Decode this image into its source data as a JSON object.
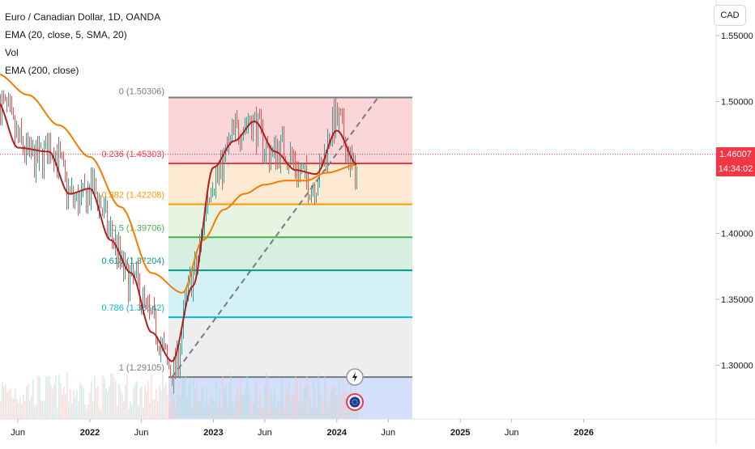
{
  "legend": {
    "symbol": "Euro / Canadian Dollar, 1D, OANDA",
    "ind1": "EMA (20, close, 5, SMA, 20)",
    "ind2": "Vol",
    "ind3": "EMA (200, close)"
  },
  "currency_button": "CAD",
  "last_price": {
    "value": "1.46007",
    "countdown": "14:34:02"
  },
  "colors": {
    "up": "#26a69a",
    "down": "#ef5350",
    "ema20": "#b71c1c",
    "ema200": "#f57c00",
    "price_line": "#f23645"
  },
  "chart_data": {
    "type": "line",
    "symbol": "EURCAD",
    "y_ticks": [
      "1.55000",
      "1.50000",
      "1.45000",
      "1.40000",
      "1.35000",
      "1.30000"
    ],
    "ylim": [
      1.262,
      1.562
    ],
    "x_ticks": [
      "Jun",
      "2022",
      "Jun",
      "2023",
      "Jun",
      "2024",
      "Jun",
      "2025",
      "Jun",
      "2026"
    ],
    "series": [
      {
        "name": "EMA (20, close, 5, SMA, 20)",
        "x": [
          "2021-04",
          "2021-06",
          "2021-09",
          "2021-11",
          "2022-01",
          "2022-03",
          "2022-05",
          "2022-07",
          "2022-09",
          "2022-11",
          "2023-01",
          "2023-03",
          "2023-05",
          "2023-07",
          "2023-09",
          "2023-11",
          "2024-01",
          "2024-03"
        ],
        "values": [
          1.5,
          1.465,
          1.462,
          1.43,
          1.434,
          1.395,
          1.37,
          1.325,
          1.303,
          1.36,
          1.45,
          1.47,
          1.485,
          1.462,
          1.448,
          1.445,
          1.478,
          1.452
        ]
      },
      {
        "name": "EMA (200, close)",
        "x": [
          "2021-04",
          "2021-07",
          "2021-10",
          "2022-01",
          "2022-04",
          "2022-07",
          "2022-10",
          "2022-12",
          "2023-02",
          "2023-04",
          "2023-06",
          "2023-08",
          "2023-10",
          "2023-12",
          "2024-03"
        ],
        "values": [
          1.521,
          1.505,
          1.482,
          1.458,
          1.42,
          1.37,
          1.355,
          1.395,
          1.418,
          1.43,
          1.437,
          1.44,
          1.44,
          1.446,
          1.452
        ]
      }
    ],
    "fibonacci": [
      {
        "level": "0",
        "price": 1.50306,
        "label": "0 (1.50306)"
      },
      {
        "level": "0.236",
        "price": 1.45303,
        "label": "0.236 (1.45303)"
      },
      {
        "level": "0.382",
        "price": 1.42208,
        "label": "0.382 (1.42208)"
      },
      {
        "level": "0.5",
        "price": 1.39706,
        "label": "0.5 (1.39706)"
      },
      {
        "level": "0.618",
        "price": 1.37204,
        "label": "0.618 (1.37204)"
      },
      {
        "level": "0.786",
        "price": 1.33642,
        "label": "0.786 (1.33642)"
      },
      {
        "level": "1",
        "price": 1.29105,
        "label": "1 (1.29105)"
      }
    ],
    "trendline": {
      "from": {
        "x": "2022-09",
        "y": 1.29105
      },
      "to": {
        "x": "2024-05",
        "y": 1.503
      }
    }
  }
}
